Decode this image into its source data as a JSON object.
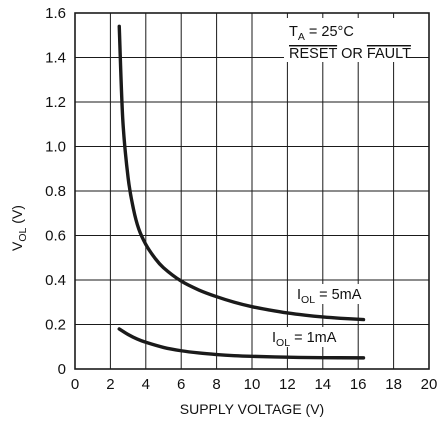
{
  "chart_data": {
    "type": "line",
    "title": "",
    "xlabel": "SUPPLY VOLTAGE (V)",
    "ylabel": {
      "main": "V",
      "sub": "OL",
      "unit": " (V)"
    },
    "xlim": [
      0,
      20
    ],
    "ylim": [
      0,
      1.6
    ],
    "x_ticks": [
      0,
      2,
      4,
      6,
      8,
      10,
      12,
      14,
      16,
      18,
      20
    ],
    "y_ticks": [
      0,
      0.2,
      0.4,
      0.6,
      0.8,
      1.0,
      1.2,
      1.4,
      1.6
    ],
    "x_tick_labels": [
      "0",
      "2",
      "4",
      "6",
      "8",
      "10",
      "12",
      "14",
      "16",
      "18",
      "20"
    ],
    "y_tick_labels": [
      "0",
      "0.2",
      "0.4",
      "0.6",
      "0.8",
      "1.0",
      "1.2",
      "1.4",
      "1.6"
    ],
    "grid": true,
    "series": [
      {
        "name": "I_OL = 5mA",
        "label": {
          "main": "I",
          "sub": "OL",
          "rest": " = 5mA"
        },
        "x": [
          2.5,
          2.7,
          3.0,
          3.3,
          3.6,
          4.0,
          4.5,
          5.0,
          6.0,
          7.0,
          8.0,
          9.0,
          10.0,
          11.0,
          12.0,
          13.0,
          14.0,
          15.0,
          16.3
        ],
        "y": [
          1.54,
          1.12,
          0.86,
          0.72,
          0.63,
          0.56,
          0.5,
          0.455,
          0.395,
          0.355,
          0.325,
          0.3,
          0.28,
          0.265,
          0.252,
          0.242,
          0.234,
          0.228,
          0.222
        ]
      },
      {
        "name": "I_OL = 1mA",
        "label": {
          "main": "I",
          "sub": "OL",
          "rest": " = 1mA"
        },
        "x": [
          2.5,
          3.0,
          3.5,
          4.0,
          5.0,
          6.0,
          7.0,
          8.0,
          9.0,
          10.0,
          12.0,
          14.0,
          16.3
        ],
        "y": [
          0.18,
          0.155,
          0.135,
          0.12,
          0.097,
          0.082,
          0.072,
          0.065,
          0.06,
          0.057,
          0.053,
          0.051,
          0.05
        ]
      }
    ],
    "annotations": {
      "conditions": {
        "ta_main": "T",
        "ta_sub": "A",
        "ta_rest": " = 25°C",
        "reset": "RESET",
        "or": " OR ",
        "fault": "FAULT"
      }
    },
    "colors": {
      "line": "#1a1a1a",
      "grid": "#1a1a1a",
      "background": "#ffffff"
    }
  }
}
